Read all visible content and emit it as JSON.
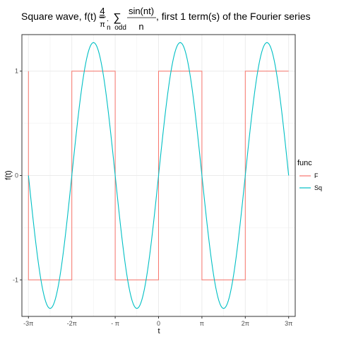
{
  "chart_data": {
    "type": "line",
    "title": {
      "prefix": "Square wave, f(t) = ",
      "frac1_num": "4",
      "frac1_den": "π",
      "sigma": "∑",
      "sigma_sub": "n  odd",
      "frac2_num": "sin(nt)",
      "frac2_den": "n",
      "suffix": ", first 1 term(s) of the Fourier series"
    },
    "xlabel": "t",
    "ylabel": "f(t)",
    "xlim": [
      -9.9,
      9.9
    ],
    "ylim": [
      -1.35,
      1.35
    ],
    "x_ticks": [
      {
        "value": -9.42478,
        "label": "-3π"
      },
      {
        "value": -6.28319,
        "label": "-2π"
      },
      {
        "value": -3.14159,
        "label": "- π"
      },
      {
        "value": 0,
        "label": "0"
      },
      {
        "value": 3.14159,
        "label": "π"
      },
      {
        "value": 6.28319,
        "label": "2π"
      },
      {
        "value": 9.42478,
        "label": "3π"
      }
    ],
    "y_ticks": [
      {
        "value": -1,
        "label": "-1"
      },
      {
        "value": 0,
        "label": "0"
      },
      {
        "value": 1,
        "label": "1"
      }
    ],
    "grid": true,
    "legend": {
      "title": "func",
      "position": "right",
      "entries": [
        {
          "name": "F",
          "color": "#F8766D"
        },
        {
          "name": "Sq",
          "color": "#00BFC4"
        }
      ]
    },
    "series": [
      {
        "name": "F",
        "color": "#F8766D",
        "x": [
          -9.42478,
          -9.42478,
          -6.28319,
          -6.28319,
          -3.14159,
          -3.14159,
          0,
          0,
          3.14159,
          3.14159,
          6.28319,
          6.28319,
          9.42478
        ],
        "y": [
          1,
          -1,
          -1,
          1,
          1,
          -1,
          -1,
          1,
          1,
          -1,
          -1,
          1,
          1
        ]
      },
      {
        "name": "Sq",
        "color": "#00BFC4",
        "function": "4/π · sin(t)",
        "x_range": [
          -9.42478,
          9.42478
        ],
        "amplitude": 1.2732
      }
    ]
  }
}
